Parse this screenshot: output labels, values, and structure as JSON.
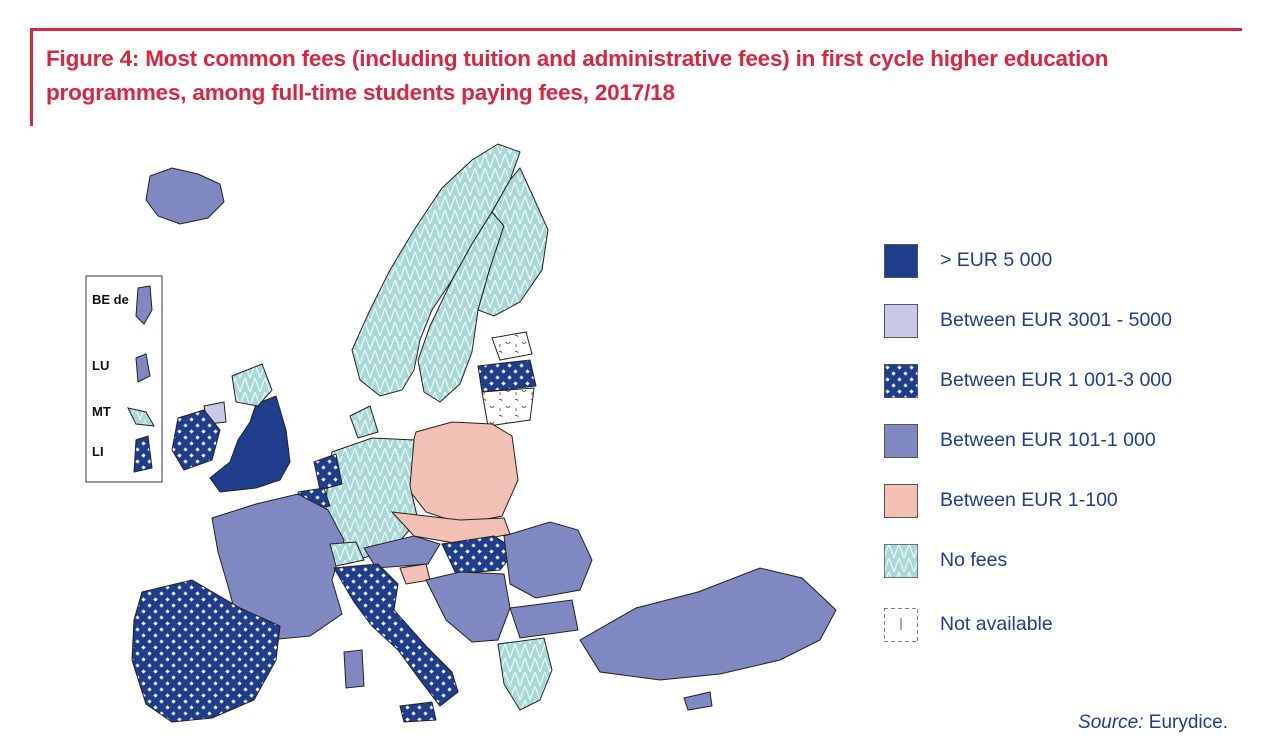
{
  "title": "Figure 4: Most common fees (including tuition and administrative fees) in first cycle higher education programmes, among full-time students paying fees, 2017/18",
  "colors": {
    "accent": "#d9263f",
    "text_blue": "#1f3d8c",
    "over_5000": "#1f3d8c",
    "between_3001_5000": "#c8c9e6",
    "between_1001_3000": "#1f3d8c",
    "between_101_1000": "#8088c2",
    "between_1_100": "#f3c0b5",
    "no_fees": "#a9d9d6",
    "not_available": "#ffffff"
  },
  "legend": [
    {
      "category": "over_5000",
      "label": ">  EUR 5 000",
      "pattern": "solid-dark-blue"
    },
    {
      "category": "between_3001_5000",
      "label": "Between EUR 3001 - 5000",
      "pattern": "solid-light-lavender"
    },
    {
      "category": "between_1001_3000",
      "label": "Between EUR 1 001-3 000",
      "pattern": "dark-blue-dotted"
    },
    {
      "category": "between_101_1000",
      "label": "Between EUR 101-1 000",
      "pattern": "solid-medium-blue"
    },
    {
      "category": "between_1_100",
      "label": "Between EUR 1-100",
      "pattern": "solid-pink"
    },
    {
      "category": "no_fees",
      "label": "No fees",
      "pattern": "teal-zigzag"
    },
    {
      "category": "not_available",
      "label": "Not available",
      "pattern": "white-squiggle"
    }
  ],
  "inset": {
    "labels": [
      "BE de",
      "LU",
      "MT",
      "LI"
    ]
  },
  "source": {
    "prefix": "Source:",
    "text": " Eurydice."
  }
}
